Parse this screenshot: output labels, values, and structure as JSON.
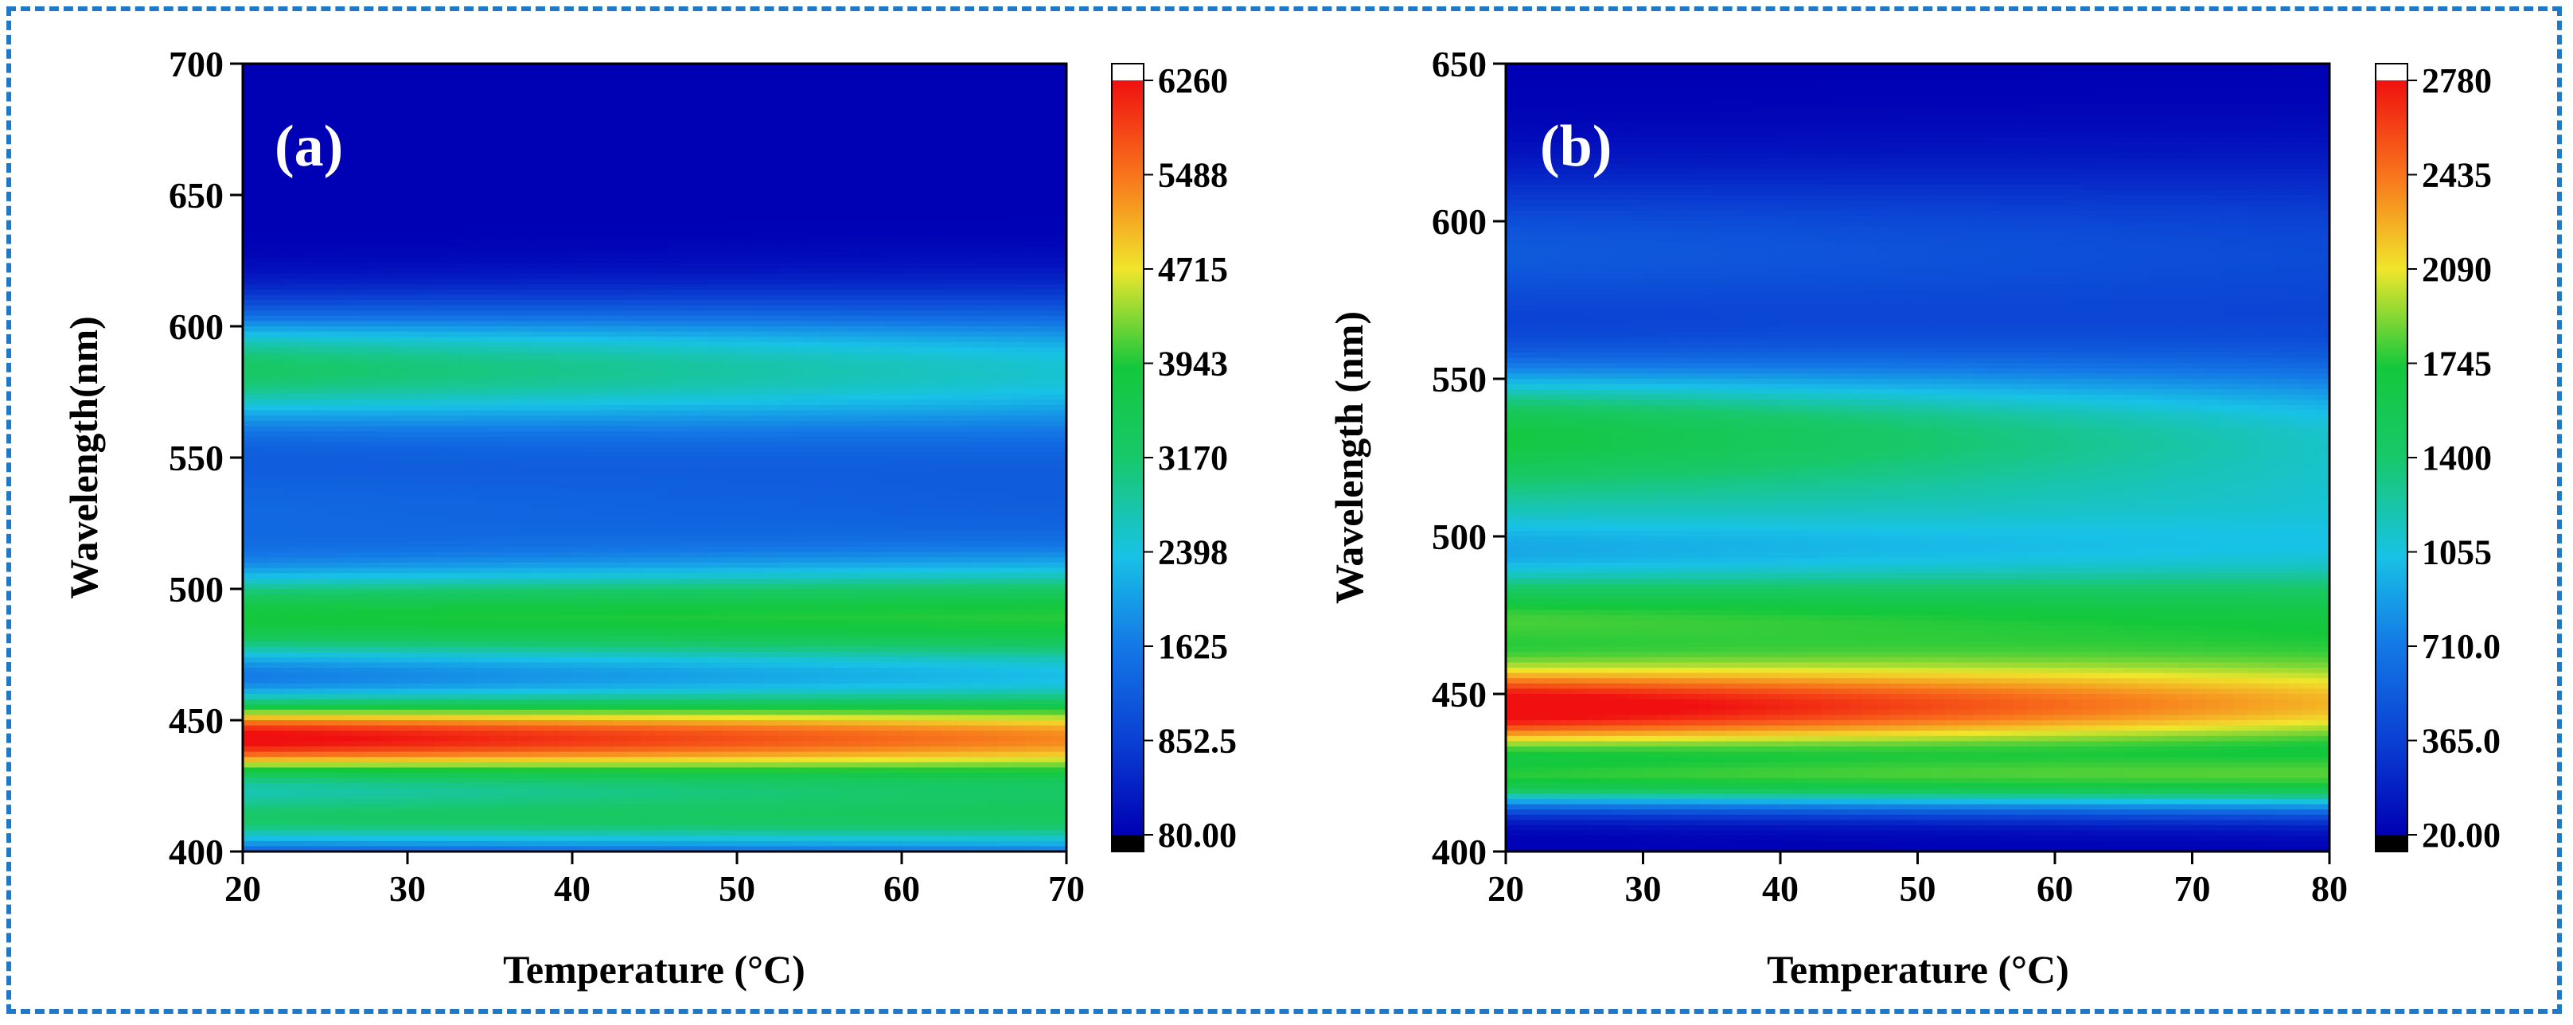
{
  "chart_data": [
    {
      "type": "heatmap",
      "panel_label": "(a)",
      "xlabel": "Temperature (°C)",
      "ylabel": "Wavelength(nm)",
      "xlim": [
        20,
        70
      ],
      "ylim": [
        400,
        700
      ],
      "x_ticks": [
        "20",
        "30",
        "40",
        "50",
        "60",
        "70"
      ],
      "y_ticks": [
        "400",
        "450",
        "500",
        "550",
        "600",
        "650",
        "700"
      ],
      "colorbar_ticks": [
        "80.00",
        "852.5",
        "1625",
        "2398",
        "3170",
        "3943",
        "4715",
        "5488",
        "6260"
      ],
      "colorbar_range": [
        80,
        6260
      ],
      "bands": [
        {
          "center": 443,
          "sigma": 11,
          "amp_start": 6300,
          "amp_end": 5200
        },
        {
          "center": 488,
          "sigma": 13,
          "amp_start": 3600,
          "amp_end": 3600
        },
        {
          "center": 584,
          "sigma": 16,
          "amp_start": 3100,
          "amp_end": 2300
        },
        {
          "center": 530,
          "sigma": 22,
          "amp_start": 1300,
          "amp_end": 1100
        },
        {
          "center": 412,
          "sigma": 9,
          "amp_start": 3000,
          "amp_end": 3000
        }
      ],
      "baseline": 80
    },
    {
      "type": "heatmap",
      "panel_label": "(b)",
      "xlabel": "Temperature (°C)",
      "ylabel": "Wavelength (nm)",
      "xlim": [
        20,
        80
      ],
      "ylim": [
        400,
        650
      ],
      "x_ticks": [
        "20",
        "30",
        "40",
        "50",
        "60",
        "70",
        "80"
      ],
      "y_ticks": [
        "400",
        "450",
        "500",
        "550",
        "600",
        "650"
      ],
      "colorbar_ticks": [
        "20.00",
        "365.0",
        "710.0",
        "1055",
        "1400",
        "1745",
        "2090",
        "2435",
        "2780"
      ],
      "colorbar_range": [
        20,
        2780
      ],
      "bands": [
        {
          "center": 445,
          "sigma": 11,
          "amp_start": 2850,
          "amp_end": 2050
        },
        {
          "center": 475,
          "sigma": 12,
          "amp_start": 1700,
          "amp_end": 1500
        },
        {
          "center": 532,
          "sigma": 16,
          "amp_start": 1650,
          "amp_end": 1050
        },
        {
          "center": 422,
          "sigma": 6,
          "amp_start": 1350,
          "amp_end": 1350
        },
        {
          "center": 505,
          "sigma": 10,
          "amp_start": 600,
          "amp_end": 550
        },
        {
          "center": 590,
          "sigma": 18,
          "amp_start": 500,
          "amp_end": 400
        }
      ],
      "baseline": 20
    }
  ]
}
